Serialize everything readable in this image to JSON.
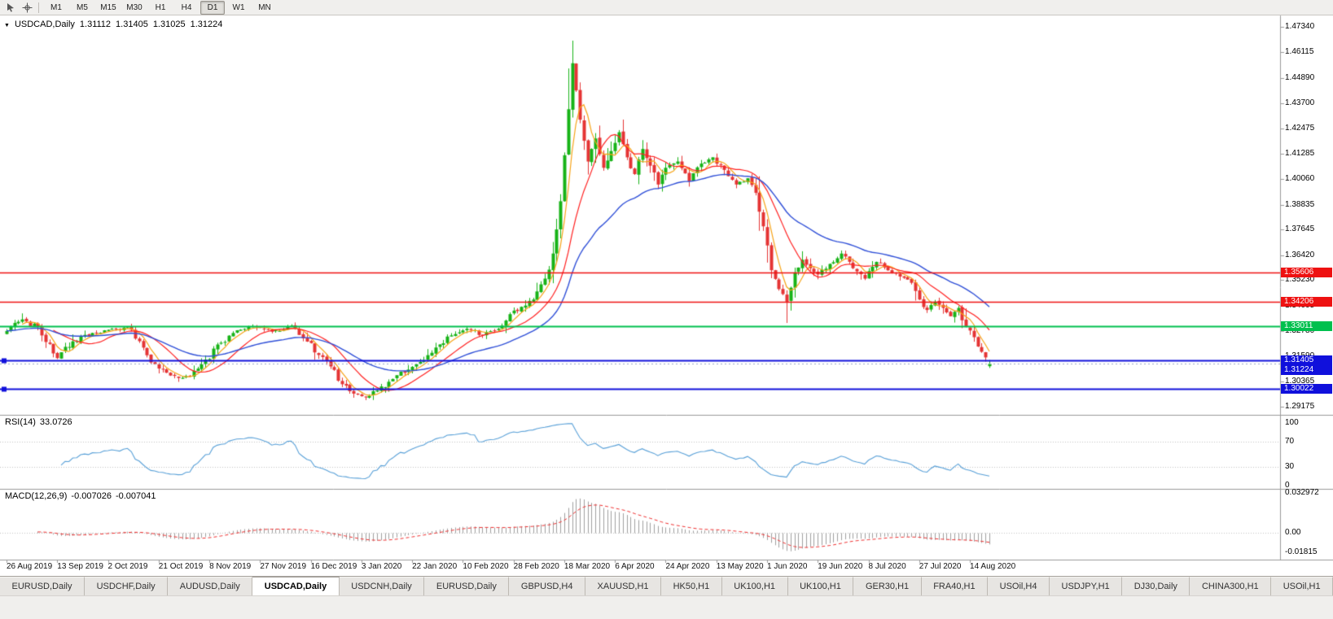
{
  "palette": {
    "bull": "#17b317",
    "bear": "#e53434",
    "ma_fast": "#f7a418",
    "ma_mid": "#ff2020",
    "ma_slow": "#3050d8",
    "rsi": "#58a0d8",
    "macd_hist": "#a0a0a0",
    "macd_signal": "#f03030",
    "level_red": "#ee1111",
    "level_green": "#00c04e",
    "level_blue": "#1010dc"
  },
  "toolbar": {
    "timeframes": [
      "M1",
      "M5",
      "M15",
      "M30",
      "H1",
      "H4",
      "D1",
      "W1",
      "MN"
    ],
    "active_timeframe": "D1"
  },
  "chart": {
    "title": {
      "symbol_period": "USDCAD,Daily",
      "open": "1.31112",
      "high": "1.31405",
      "low": "1.31025",
      "close": "1.31224"
    },
    "price_axis": [
      "1.47340",
      "1.46115",
      "1.44890",
      "1.43700",
      "1.42475",
      "1.41285",
      "1.40060",
      "1.38835",
      "1.37645",
      "1.36420",
      "1.35230",
      "1.34005",
      "1.32780",
      "1.31590",
      "1.30365",
      "1.29175"
    ],
    "price_markers": [
      {
        "text": "1.35606",
        "price": 1.35606,
        "bg": "#ee1111",
        "offset": 0
      },
      {
        "text": "1.34206",
        "price": 1.34206,
        "bg": "#ee1111",
        "offset": 0
      },
      {
        "text": "1.33011",
        "price": 1.33011,
        "bg": "#00c04e",
        "offset": 0
      },
      {
        "text": "1.31405",
        "price": 1.31405,
        "bg": "#1010dc",
        "offset": 0
      },
      {
        "text": "1.31224",
        "price": 1.31224,
        "bg": "#1010dc",
        "offset": 8
      },
      {
        "text": "1.30022",
        "price": 1.30022,
        "bg": "#1010dc",
        "offset": 0
      }
    ],
    "dates": [
      "26 Aug 2019",
      "13 Sep 2019",
      "2 Oct 2019",
      "21 Oct 2019",
      "8 Nov 2019",
      "27 Nov 2019",
      "16 Dec 2019",
      "3 Jan 2020",
      "22 Jan 2020",
      "10 Feb 2020",
      "28 Feb 2020",
      "18 Mar 2020",
      "6 Apr 2020",
      "24 Apr 2020",
      "13 May 2020",
      "1 Jun 2020",
      "19 Jun 2020",
      "8 Jul 2020",
      "27 Jul 2020",
      "14 Aug 2020"
    ]
  },
  "rsi": {
    "label": "RSI(14)",
    "value": "33.0726",
    "levels": [
      100,
      70,
      30,
      0
    ]
  },
  "macd": {
    "label": "MACD(12,26,9)",
    "value1": "-0.007026",
    "value2": "-0.007041",
    "levels": [
      {
        "text": "0.032972",
        "v": 0.032972
      },
      {
        "text": "0.00",
        "v": 0
      },
      {
        "text": "-0.01815",
        "v": -0.01815
      }
    ]
  },
  "tabs": [
    "EURUSD,Daily",
    "USDCHF,Daily",
    "AUDUSD,Daily",
    "USDCAD,Daily",
    "USDCNH,Daily",
    "EURUSD,Daily",
    "GBPUSD,H4",
    "XAUUSD,H1",
    "HK50,H1",
    "UK100,H1",
    "UK100,H1",
    "GER30,H1",
    "FRA40,H1",
    "USOil,H4",
    "USDJPY,H1",
    "DJ30,Daily",
    "CHINA300,H1",
    "USOil,H1"
  ],
  "active_tab_index": 3,
  "chart_data": {
    "type": "candlestick",
    "symbol": "USDCAD",
    "timeframe": "Daily",
    "visible_range": {
      "start": "26 Aug 2019",
      "end": "Aug 2020"
    },
    "price_range": [
      1.29175,
      1.4734
    ],
    "last_candle": {
      "open": 1.31112,
      "high": 1.31405,
      "low": 1.31025,
      "close": 1.31224
    },
    "num_days": 253,
    "days_per_label": 13,
    "close_anchors": [
      [
        0,
        1.328
      ],
      [
        4,
        1.3335
      ],
      [
        8,
        1.33
      ],
      [
        13,
        1.315
      ],
      [
        17,
        1.323
      ],
      [
        22,
        1.327
      ],
      [
        27,
        1.329
      ],
      [
        31,
        1.33
      ],
      [
        35,
        1.32
      ],
      [
        39,
        1.31
      ],
      [
        44,
        1.3055
      ],
      [
        47,
        1.3065
      ],
      [
        50,
        1.312
      ],
      [
        54,
        1.3215
      ],
      [
        58,
        1.327
      ],
      [
        62,
        1.33
      ],
      [
        66,
        1.329
      ],
      [
        70,
        1.328
      ],
      [
        73,
        1.3305
      ],
      [
        76,
        1.3245
      ],
      [
        80,
        1.3165
      ],
      [
        83,
        1.311
      ],
      [
        86,
        1.3025
      ],
      [
        89,
        1.298
      ],
      [
        92,
        1.2962
      ],
      [
        95,
        1.2995
      ],
      [
        99,
        1.305
      ],
      [
        103,
        1.3095
      ],
      [
        107,
        1.314
      ],
      [
        111,
        1.3215
      ],
      [
        115,
        1.3265
      ],
      [
        118,
        1.329
      ],
      [
        122,
        1.326
      ],
      [
        126,
        1.329
      ],
      [
        129,
        1.336
      ],
      [
        132,
        1.3395
      ],
      [
        135,
        1.343
      ],
      [
        138,
        1.353
      ],
      [
        140,
        1.365
      ],
      [
        142,
        1.39
      ],
      [
        143,
        1.412
      ],
      [
        144,
        1.434
      ],
      [
        145,
        1.456
      ],
      [
        146,
        1.443
      ],
      [
        147,
        1.429
      ],
      [
        149,
        1.409
      ],
      [
        151,
        1.42
      ],
      [
        153,
        1.406
      ],
      [
        155,
        1.414
      ],
      [
        157,
        1.423
      ],
      [
        159,
        1.411
      ],
      [
        161,
        1.403
      ],
      [
        163,
        1.415
      ],
      [
        165,
        1.407
      ],
      [
        167,
        1.398
      ],
      [
        169,
        1.406
      ],
      [
        172,
        1.409
      ],
      [
        175,
        1.3995
      ],
      [
        178,
        1.408
      ],
      [
        181,
        1.411
      ],
      [
        184,
        1.405
      ],
      [
        187,
        1.398
      ],
      [
        190,
        1.401
      ],
      [
        192,
        1.394
      ],
      [
        194,
        1.378
      ],
      [
        196,
        1.357
      ],
      [
        198,
        1.348
      ],
      [
        200,
        1.342
      ],
      [
        202,
        1.356
      ],
      [
        204,
        1.362
      ],
      [
        206,
        1.358
      ],
      [
        208,
        1.355
      ],
      [
        211,
        1.36
      ],
      [
        214,
        1.365
      ],
      [
        217,
        1.358
      ],
      [
        220,
        1.353
      ],
      [
        223,
        1.361
      ],
      [
        226,
        1.357
      ],
      [
        229,
        1.354
      ],
      [
        232,
        1.351
      ],
      [
        234,
        1.343
      ],
      [
        236,
        1.338
      ],
      [
        238,
        1.342
      ],
      [
        240,
        1.339
      ],
      [
        242,
        1.335
      ],
      [
        244,
        1.339
      ],
      [
        246,
        1.33
      ],
      [
        248,
        1.325
      ],
      [
        250,
        1.318
      ],
      [
        252,
        1.31224
      ]
    ],
    "wick_overrides": [
      {
        "day": 144,
        "high": 1.4535
      },
      {
        "day": 145,
        "high": 1.4668
      },
      {
        "day": 146,
        "high": 1.456
      },
      {
        "day": 92,
        "low": 1.2949
      },
      {
        "day": 200,
        "low": 1.3318
      }
    ],
    "hlines": [
      {
        "price": 1.35606,
        "color": "#ee1111",
        "width": 1.5
      },
      {
        "price": 1.34206,
        "color": "#ee1111",
        "width": 1.5
      },
      {
        "price": 1.33011,
        "color": "#00c04e",
        "width": 2
      },
      {
        "price": 1.31405,
        "color": "#1010dc",
        "width": 2,
        "handle": true
      },
      {
        "price": 1.30022,
        "color": "#1010dc",
        "width": 2,
        "handle": true
      }
    ],
    "moving_averages": [
      {
        "period": 5,
        "type": "sma",
        "color": "#f7a418",
        "width": 1.2
      },
      {
        "period": 13,
        "type": "sma",
        "color": "#ff2020",
        "width": 1.2
      },
      {
        "period": 34,
        "type": "ema",
        "color": "#3050d8",
        "width": 1.4
      }
    ],
    "rsi_period": 14,
    "rsi_levels": [
      70,
      30
    ],
    "macd_params": [
      12,
      26,
      9
    ],
    "macd_range": [
      -0.01815,
      0.032972
    ]
  }
}
